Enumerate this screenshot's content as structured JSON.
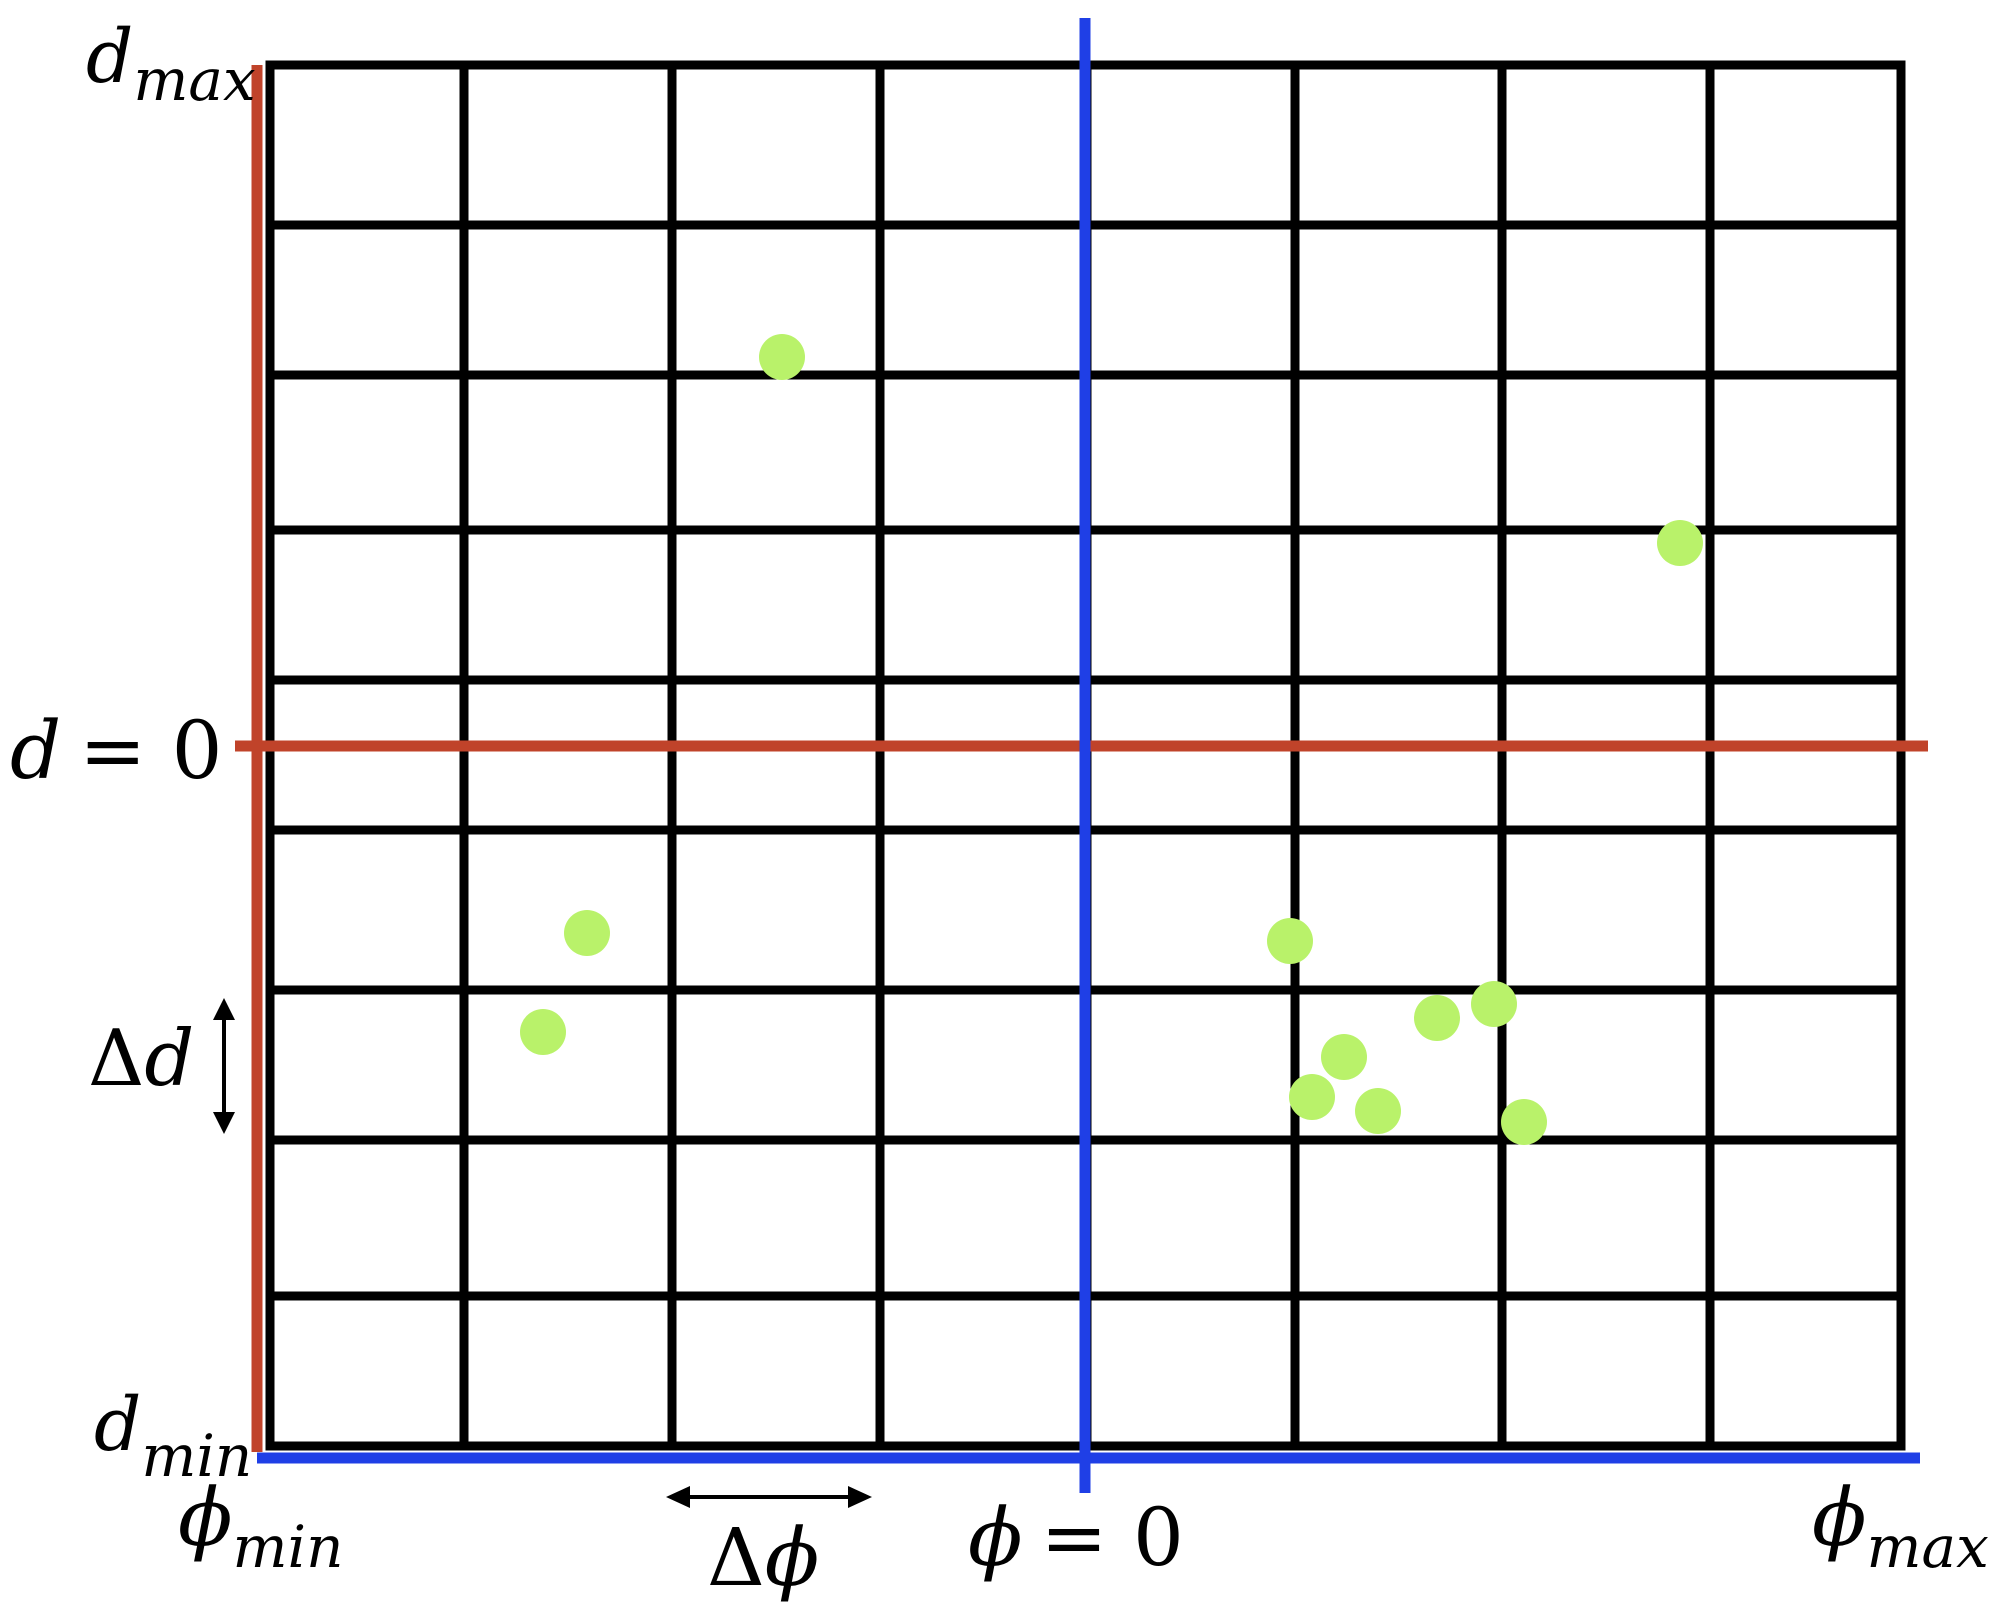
{
  "labels": {
    "d_max": {
      "main": "d",
      "sub": "max"
    },
    "d_zero": {
      "var": "d",
      "eq": "= 0"
    },
    "d_min": {
      "main": "d",
      "sub": "min"
    },
    "delta_d": {
      "delta": "Δ",
      "var": "d"
    },
    "phi_min": {
      "main": "ϕ",
      "sub": "min"
    },
    "delta_phi": {
      "delta": "Δ",
      "var": "ϕ"
    },
    "phi_zero": {
      "var": "ϕ",
      "eq": "= 0"
    },
    "phi_max": {
      "main": "ϕ",
      "sub": "max"
    }
  },
  "grid": {
    "columns": 8,
    "rows": 9
  },
  "colors": {
    "grid_lines": "#000000",
    "d_axis": "#c0432a",
    "phi_axis": "#1f3fe6",
    "points": "#b9f26a",
    "background": "#ffffff"
  }
}
